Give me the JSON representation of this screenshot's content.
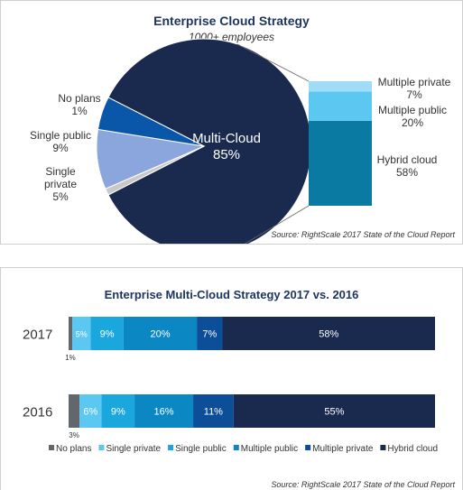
{
  "top_panel": {
    "title": "Enterprise Cloud Strategy",
    "subtitle": "1000+ employees",
    "source": "Source: RightScale 2017 State of the Cloud Report"
  },
  "bottom_panel": {
    "title": "Enterprise Multi-Cloud Strategy 2017 vs. 2016",
    "source": "Source: RightScale 2017 State of the Cloud Report"
  },
  "chart_data": [
    {
      "type": "pie",
      "title": "Enterprise Cloud Strategy",
      "subtitle": "1000+ employees",
      "slices": [
        {
          "label": "Multi-Cloud",
          "value": 85,
          "value_label": "85%",
          "color": "#1a2a4f"
        },
        {
          "label": "No plans",
          "value": 1,
          "value_label": "1%",
          "color": "#c8c8c8"
        },
        {
          "label": "Single public",
          "value": 9,
          "value_label": "9%",
          "color": "#8ba6dc"
        },
        {
          "label": "Single private",
          "value": 5,
          "value_label": "5%",
          "color": "#0a56a8"
        }
      ],
      "breakdown_of": "Multi-Cloud",
      "breakdown": [
        {
          "label": "Hybrid cloud",
          "value": 58,
          "value_label": "58%",
          "color": "#0b7aa3"
        },
        {
          "label": "Multiple public",
          "value": 20,
          "value_label": "20%",
          "color": "#5cc8f2"
        },
        {
          "label": "Multiple private",
          "value": 7,
          "value_label": "7%",
          "color": "#9edcf7"
        }
      ]
    },
    {
      "type": "bar",
      "orientation": "horizontal-stacked",
      "title": "Enterprise Multi-Cloud Strategy 2017 vs. 2016",
      "categories": [
        "2017",
        "2016"
      ],
      "series": [
        {
          "name": "No plans",
          "color": "#62666d",
          "values": [
            1,
            3
          ],
          "value_labels": [
            "1%",
            "3%"
          ]
        },
        {
          "name": "Single private",
          "color": "#5cc8f2",
          "values": [
            5,
            6
          ],
          "value_labels": [
            "5%",
            "6%"
          ]
        },
        {
          "name": "Single public",
          "color": "#1aa7de",
          "values": [
            9,
            9
          ],
          "value_labels": [
            "9%",
            "9%"
          ]
        },
        {
          "name": "Multiple public",
          "color": "#0b88c4",
          "values": [
            20,
            16
          ],
          "value_labels": [
            "20%",
            "16%"
          ]
        },
        {
          "name": "Multiple private",
          "color": "#0c4f98",
          "values": [
            7,
            11
          ],
          "value_labels": [
            "7%",
            "11%"
          ]
        },
        {
          "name": "Hybrid cloud",
          "color": "#1a2a4f",
          "values": [
            58,
            55
          ],
          "value_labels": [
            "58%",
            "55%"
          ]
        }
      ],
      "legend_position": "bottom"
    }
  ]
}
